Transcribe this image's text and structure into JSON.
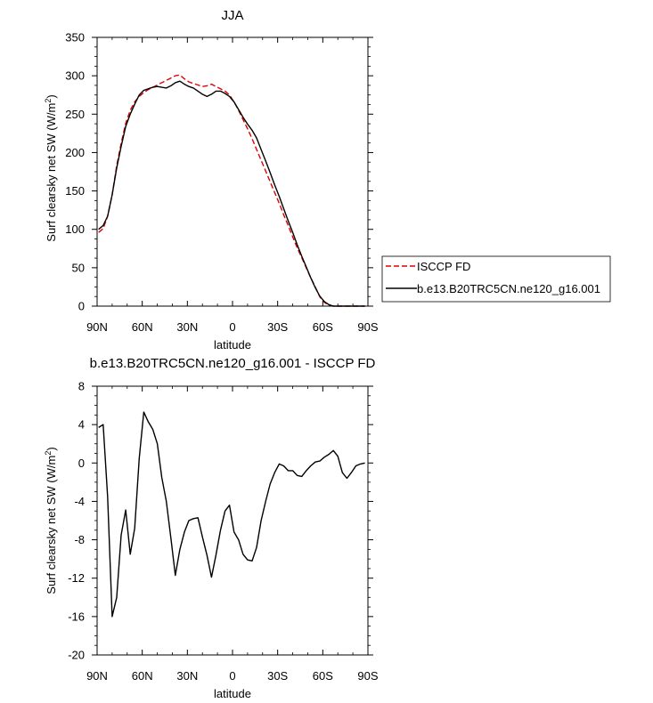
{
  "chart_data": [
    {
      "type": "line",
      "title": "JJA",
      "xlabel": "latitude",
      "ylabel_main": "Surf clearsky net SW (W/m",
      "ylabel_sup": "2",
      "ylabel_end": ")",
      "xlim": [
        90,
        -90
      ],
      "ylim": [
        0,
        350
      ],
      "x_ticks": [
        90,
        60,
        30,
        0,
        -30,
        -60,
        -90
      ],
      "x_tick_labels": [
        "90N",
        "60N",
        "30N",
        "0",
        "30S",
        "60S",
        "90S"
      ],
      "y_ticks": [
        0,
        50,
        100,
        150,
        200,
        250,
        300,
        350
      ],
      "y_tick_labels": [
        "0",
        "50",
        "100",
        "150",
        "200",
        "250",
        "300",
        "350"
      ],
      "legend_position": "outside-right",
      "series": [
        {
          "name": "ISCCP FD",
          "color": "#e00000",
          "dash": "dashed",
          "x": [
            89,
            86,
            83,
            80,
            77,
            74,
            71,
            68,
            65,
            62,
            59,
            56,
            53,
            50,
            47,
            44,
            41,
            38,
            35,
            32,
            29,
            26,
            23,
            20,
            17,
            14,
            11,
            8,
            5,
            2,
            -1,
            -4,
            -7,
            -10,
            -13,
            -16,
            -19,
            -22,
            -25,
            -28,
            -31,
            -34,
            -37,
            -40,
            -43,
            -46,
            -49,
            -52,
            -55,
            -58,
            -61,
            -64,
            -67,
            -70,
            -73,
            -76,
            -79,
            -82,
            -85,
            -88
          ],
          "y": [
            96,
            101,
            117,
            145,
            183,
            212,
            238,
            255,
            266,
            273,
            278,
            282,
            285,
            288,
            291,
            294,
            297,
            300,
            301,
            296,
            292,
            290,
            288,
            286,
            287,
            289,
            286,
            283,
            280,
            275,
            266,
            255,
            243,
            231,
            218,
            204,
            190,
            176,
            162,
            148,
            134,
            119,
            105,
            90,
            76,
            63,
            50,
            37,
            25,
            12,
            5,
            1,
            0,
            0,
            0,
            0,
            0,
            0,
            0,
            0
          ]
        },
        {
          "name": "b.e13.B20TRC5CN.ne120_g16.001",
          "color": "#000000",
          "dash": "solid",
          "x": [
            89,
            86,
            83,
            80,
            77,
            74,
            71,
            68,
            65,
            62,
            59,
            56,
            53,
            50,
            47,
            44,
            41,
            38,
            35,
            32,
            29,
            26,
            23,
            20,
            17,
            14,
            11,
            8,
            5,
            2,
            -1,
            -4,
            -7,
            -10,
            -13,
            -16,
            -19,
            -22,
            -25,
            -28,
            -31,
            -34,
            -37,
            -40,
            -43,
            -46,
            -49,
            -52,
            -55,
            -58,
            -61,
            -64,
            -67,
            -70,
            -73,
            -76,
            -79,
            -82,
            -85,
            -88
          ],
          "y": [
            100,
            105,
            117,
            145,
            180,
            208,
            234,
            250,
            263,
            275,
            281,
            283,
            285,
            286,
            285,
            284,
            287,
            291,
            293,
            289,
            286,
            284,
            280,
            276,
            273,
            276,
            280,
            280,
            277,
            273,
            266,
            256,
            246,
            237,
            229,
            219,
            204,
            189,
            174,
            158,
            143,
            127,
            111,
            96,
            80,
            65,
            51,
            37,
            24,
            13,
            6,
            2,
            0,
            0,
            0,
            0,
            0,
            0,
            0,
            0
          ]
        }
      ]
    },
    {
      "type": "line",
      "title": "b.e13.B20TRC5CN.ne120_g16.001 - ISCCP FD",
      "xlabel": "latitude",
      "ylabel_main": "Surf clearsky net SW (W/m",
      "ylabel_sup": "2",
      "ylabel_end": ")",
      "xlim": [
        90,
        -90
      ],
      "ylim": [
        -20,
        8
      ],
      "x_ticks": [
        90,
        60,
        30,
        0,
        -30,
        -60,
        -90
      ],
      "x_tick_labels": [
        "90N",
        "60N",
        "30N",
        "0",
        "30S",
        "60S",
        "90S"
      ],
      "y_ticks": [
        -20,
        -16,
        -12,
        -8,
        -4,
        0,
        4,
        8
      ],
      "y_tick_labels": [
        "-20",
        "-16",
        "-12",
        "-8",
        "-4",
        "0",
        "4",
        "8"
      ],
      "series": [
        {
          "color": "#000000",
          "dash": "solid",
          "x": [
            89,
            86,
            83,
            80,
            77,
            74,
            71,
            68,
            65,
            62,
            59,
            56,
            53,
            50,
            47,
            44,
            41,
            38,
            35,
            32,
            29,
            26,
            23,
            20,
            17,
            14,
            11,
            8,
            5,
            2,
            -1,
            -4,
            -7,
            -10,
            -13,
            -16,
            -19,
            -22,
            -25,
            -28,
            -31,
            -34,
            -37,
            -40,
            -43,
            -46,
            -49,
            -52,
            -55,
            -58,
            -61,
            -64,
            -67,
            -70,
            -73,
            -76,
            -79,
            -82,
            -85,
            -88
          ],
          "y": [
            3.7,
            4.0,
            -3.5,
            -16.0,
            -14.0,
            -7.5,
            -4.9,
            -9.5,
            -6.8,
            0.5,
            5.3,
            4.3,
            3.5,
            2.0,
            -1.5,
            -4.0,
            -7.8,
            -11.7,
            -9.0,
            -7.2,
            -6.0,
            -5.8,
            -5.7,
            -7.7,
            -9.6,
            -11.9,
            -9.6,
            -7.0,
            -5.0,
            -4.4,
            -7.2,
            -8.0,
            -9.5,
            -10.1,
            -10.2,
            -8.8,
            -6.0,
            -4.0,
            -2.2,
            -1.0,
            -0.1,
            -0.3,
            -0.8,
            -0.8,
            -1.3,
            -1.4,
            -0.8,
            -0.3,
            0.1,
            0.2,
            0.6,
            0.9,
            1.3,
            0.7,
            -1.0,
            -1.6,
            -1.0,
            -0.3,
            -0.1,
            0.0
          ]
        }
      ]
    }
  ]
}
